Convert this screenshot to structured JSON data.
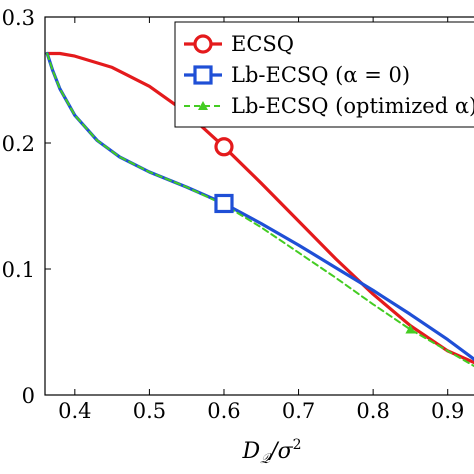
{
  "chart_data": {
    "type": "line",
    "xlabel": "D_Q/σ²",
    "ylabel": "",
    "xlim": [
      0.36,
      0.95
    ],
    "ylim": [
      0,
      0.3
    ],
    "x_ticks": [
      0.4,
      0.5,
      0.6,
      0.7,
      0.8,
      0.9
    ],
    "x_tick_labels": [
      "0.4",
      "0.5",
      "0.6",
      "0.7",
      "0.8",
      "0.9"
    ],
    "y_ticks": [
      0,
      0.1,
      0.2,
      0.3
    ],
    "y_tick_labels": [
      "0",
      "0.1",
      "0.2",
      "0.3"
    ],
    "grid": false,
    "legend_position": "top-right",
    "series": [
      {
        "name": "ECSQ",
        "color": "#e41a1c",
        "style": "solid",
        "marker": "circle",
        "marker_points": [
          [
            0.6,
            0.197
          ]
        ],
        "x": [
          0.363,
          0.38,
          0.4,
          0.45,
          0.5,
          0.55,
          0.6,
          0.65,
          0.7,
          0.75,
          0.8,
          0.85,
          0.9,
          0.95
        ],
        "y": [
          0.271,
          0.271,
          0.269,
          0.26,
          0.245,
          0.224,
          0.197,
          0.168,
          0.138,
          0.108,
          0.08,
          0.055,
          0.035,
          0.022
        ]
      },
      {
        "name": "Lb-ECSQ (α = 0)",
        "color": "#1f4fd6",
        "style": "solid",
        "marker": "square",
        "marker_points": [
          [
            0.6,
            0.152
          ]
        ],
        "x": [
          0.363,
          0.37,
          0.38,
          0.4,
          0.43,
          0.46,
          0.5,
          0.55,
          0.6,
          0.65,
          0.7,
          0.75,
          0.8,
          0.85,
          0.9,
          0.95
        ],
        "y": [
          0.271,
          0.258,
          0.243,
          0.222,
          0.202,
          0.189,
          0.177,
          0.165,
          0.152,
          0.136,
          0.119,
          0.101,
          0.083,
          0.064,
          0.044,
          0.022
        ]
      },
      {
        "name": "Lb-ECSQ (optimized α)",
        "color": "#44cc22",
        "style": "dashed",
        "marker": "triangle",
        "marker_points": [
          [
            0.85,
            0.052
          ]
        ],
        "x": [
          0.363,
          0.37,
          0.38,
          0.4,
          0.43,
          0.46,
          0.5,
          0.55,
          0.6,
          0.65,
          0.7,
          0.75,
          0.8,
          0.85,
          0.9,
          0.95
        ],
        "y": [
          0.271,
          0.258,
          0.243,
          0.222,
          0.202,
          0.189,
          0.177,
          0.165,
          0.151,
          0.133,
          0.113,
          0.093,
          0.072,
          0.052,
          0.035,
          0.018
        ]
      }
    ]
  }
}
